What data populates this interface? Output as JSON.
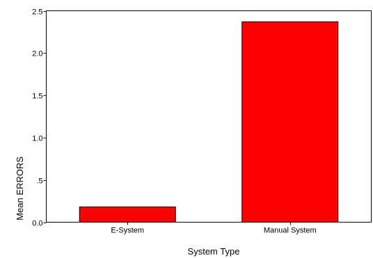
{
  "chart_data": {
    "type": "bar",
    "categories": [
      "E-System",
      "Manual System"
    ],
    "values": [
      0.18,
      2.37
    ],
    "xlabel": "System Type",
    "ylabel": "Mean ERRORS",
    "ylim": [
      0,
      2.5
    ],
    "y_ticks": [
      {
        "value": 0.0,
        "label": "0.0"
      },
      {
        "value": 0.5,
        "label": ".5"
      },
      {
        "value": 1.0,
        "label": "1.0"
      },
      {
        "value": 1.5,
        "label": "1.5"
      },
      {
        "value": 2.0,
        "label": "2.0"
      },
      {
        "value": 2.5,
        "label": "2.5"
      }
    ],
    "bar_color": "#ff0000",
    "grid": false
  }
}
